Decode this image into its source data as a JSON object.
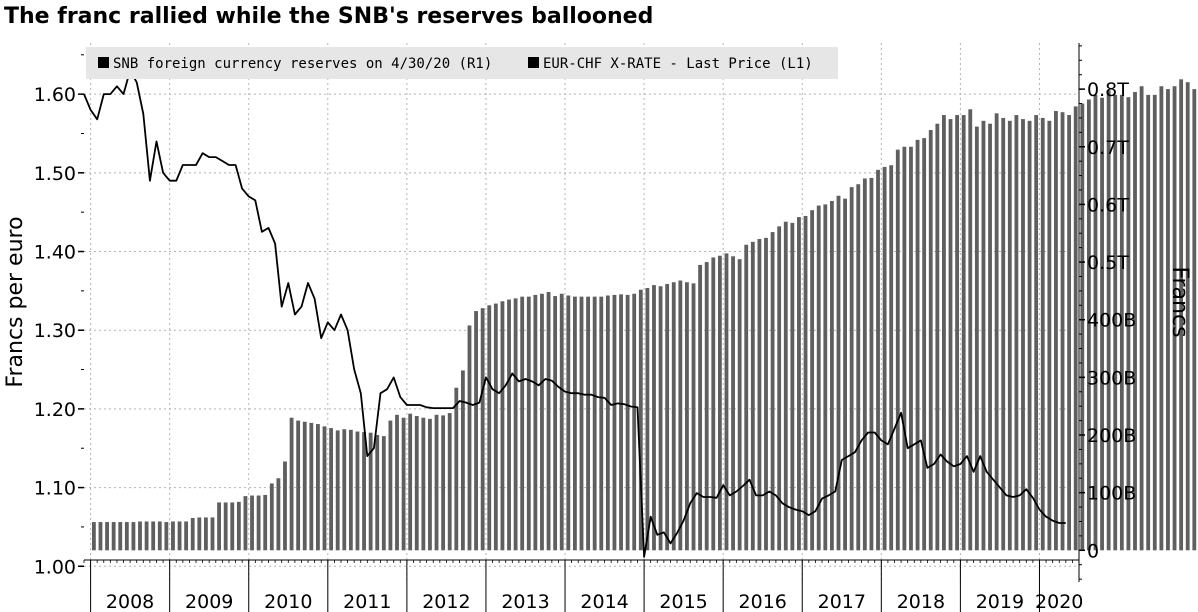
{
  "title": "The franc rallied while the SNB's reserves ballooned",
  "chart_data": {
    "type": "bar+line",
    "title": "The franc rallied while the SNB's reserves ballooned",
    "ylabel_left": "Francs per euro",
    "ylabel_right": "Francs",
    "ylim_left": [
      0.98,
      1.665
    ],
    "yticks_left": [
      "1.00",
      "1.10",
      "1.20",
      "1.30",
      "1.40",
      "1.50",
      "1.60"
    ],
    "ylim_right": [
      -55,
      880
    ],
    "yticks_right": [
      {
        "v": 0,
        "label": "0"
      },
      {
        "v": 100,
        "label": "100B"
      },
      {
        "v": 200,
        "label": "200B"
      },
      {
        "v": 300,
        "label": "300B"
      },
      {
        "v": 400,
        "label": "400B"
      },
      {
        "v": 500,
        "label": "0.5T"
      },
      {
        "v": 600,
        "label": "0.6T"
      },
      {
        "v": 700,
        "label": "0.7T"
      },
      {
        "v": 800,
        "label": "0.8T"
      }
    ],
    "x_start": "2007-12",
    "x_end": "2020-07",
    "xlabels": [
      "2008",
      "2009",
      "2010",
      "2011",
      "2012",
      "2013",
      "2014",
      "2015",
      "2016",
      "2017",
      "2018",
      "2019",
      "2020"
    ],
    "grid": true,
    "legend_position": "top-left",
    "series": [
      {
        "name": "SNB foreign currency reserves on 4/30/20 (R1)",
        "type": "bar",
        "axis": "right",
        "units": "billion francs",
        "color": "#5f5f5f",
        "start": "2008-01",
        "frequency": "monthly",
        "values": [
          49,
          49,
          49,
          49,
          49,
          49,
          49,
          50,
          50,
          50,
          50,
          49,
          50,
          50,
          50,
          56,
          57,
          57,
          57,
          83,
          83,
          83,
          84,
          94,
          95,
          95,
          96,
          116,
          125,
          154,
          230,
          225,
          223,
          221,
          219,
          215,
          212,
          208,
          210,
          209,
          206,
          205,
          204,
          200,
          198,
          225,
          235,
          230,
          237,
          233,
          230,
          228,
          235,
          234,
          238,
          282,
          312,
          390,
          415,
          420,
          425,
          428,
          432,
          435,
          437,
          440,
          440,
          443,
          445,
          448,
          441,
          445,
          442,
          440,
          440,
          440,
          440,
          440,
          442,
          443,
          444,
          443,
          445,
          452,
          455,
          460,
          458,
          462,
          465,
          468,
          465,
          463,
          495,
          500,
          508,
          511,
          515,
          510,
          505,
          530,
          535,
          540,
          542,
          552,
          562,
          570,
          568,
          578,
          580,
          590,
          598,
          600,
          606,
          615,
          610,
          630,
          635,
          645,
          646,
          660,
          665,
          668,
          695,
          700,
          700,
          712,
          715,
          729,
          740,
          755,
          748,
          755,
          755,
          765,
          735,
          745,
          740,
          758,
          750,
          745,
          755,
          748,
          745,
          755,
          750,
          745,
          762,
          760,
          755,
          770,
          775,
          782,
          790,
          785,
          798,
          790,
          790,
          786,
          795,
          805,
          790,
          790,
          805,
          800,
          805,
          817,
          812,
          800,
          808,
          815,
          805,
          805,
          826
        ]
      },
      {
        "name": "EUR-CHF X-RATE - Last Price (L1)",
        "type": "line",
        "axis": "left",
        "units": "francs per euro",
        "color": "#000000",
        "points": [
          [
            "2007-12",
            1.6
          ],
          [
            "2008-01",
            1.58
          ],
          [
            "2008-02",
            1.568
          ],
          [
            "2008-03",
            1.6
          ],
          [
            "2008-04",
            1.6
          ],
          [
            "2008-05",
            1.61
          ],
          [
            "2008-06",
            1.6
          ],
          [
            "2008-07",
            1.63
          ],
          [
            "2008-08",
            1.615
          ],
          [
            "2008-09",
            1.575
          ],
          [
            "2008-10",
            1.49
          ],
          [
            "2008-11",
            1.54
          ],
          [
            "2008-12",
            1.5
          ],
          [
            "2009-01",
            1.49
          ],
          [
            "2009-02",
            1.49
          ],
          [
            "2009-03",
            1.51
          ],
          [
            "2009-04",
            1.51
          ],
          [
            "2009-05",
            1.51
          ],
          [
            "2009-06",
            1.525
          ],
          [
            "2009-07",
            1.52
          ],
          [
            "2009-08",
            1.52
          ],
          [
            "2009-09",
            1.515
          ],
          [
            "2009-10",
            1.51
          ],
          [
            "2009-11",
            1.51
          ],
          [
            "2009-12",
            1.48
          ],
          [
            "2010-01",
            1.47
          ],
          [
            "2010-02",
            1.465
          ],
          [
            "2010-03",
            1.425
          ],
          [
            "2010-04",
            1.43
          ],
          [
            "2010-05",
            1.41
          ],
          [
            "2010-06",
            1.33
          ],
          [
            "2010-07",
            1.36
          ],
          [
            "2010-08",
            1.32
          ],
          [
            "2010-09",
            1.33
          ],
          [
            "2010-10",
            1.36
          ],
          [
            "2010-11",
            1.34
          ],
          [
            "2010-12",
            1.29
          ],
          [
            "2011-01",
            1.31
          ],
          [
            "2011-02",
            1.3
          ],
          [
            "2011-03",
            1.32
          ],
          [
            "2011-04",
            1.3
          ],
          [
            "2011-05",
            1.25
          ],
          [
            "2011-06",
            1.22
          ],
          [
            "2011-07",
            1.14
          ],
          [
            "2011-08",
            1.15
          ],
          [
            "2011-09",
            1.22
          ],
          [
            "2011-10",
            1.225
          ],
          [
            "2011-11",
            1.24
          ],
          [
            "2011-12",
            1.215
          ],
          [
            "2012-01",
            1.205
          ],
          [
            "2012-02",
            1.205
          ],
          [
            "2012-03",
            1.205
          ],
          [
            "2012-04",
            1.202
          ],
          [
            "2012-05",
            1.201
          ],
          [
            "2012-06",
            1.201
          ],
          [
            "2012-07",
            1.201
          ],
          [
            "2012-08",
            1.201
          ],
          [
            "2012-09",
            1.21
          ],
          [
            "2012-10",
            1.208
          ],
          [
            "2012-11",
            1.205
          ],
          [
            "2012-12",
            1.208
          ],
          [
            "2013-01",
            1.24
          ],
          [
            "2013-02",
            1.225
          ],
          [
            "2013-03",
            1.22
          ],
          [
            "2013-04",
            1.23
          ],
          [
            "2013-05",
            1.245
          ],
          [
            "2013-06",
            1.235
          ],
          [
            "2013-07",
            1.238
          ],
          [
            "2013-08",
            1.235
          ],
          [
            "2013-09",
            1.23
          ],
          [
            "2013-10",
            1.238
          ],
          [
            "2013-11",
            1.236
          ],
          [
            "2013-12",
            1.228
          ],
          [
            "2014-01",
            1.222
          ],
          [
            "2014-02",
            1.22
          ],
          [
            "2014-03",
            1.22
          ],
          [
            "2014-04",
            1.218
          ],
          [
            "2014-05",
            1.218
          ],
          [
            "2014-06",
            1.215
          ],
          [
            "2014-07",
            1.214
          ],
          [
            "2014-08",
            1.205
          ],
          [
            "2014-09",
            1.207
          ],
          [
            "2014-10",
            1.206
          ],
          [
            "2014-11",
            1.203
          ],
          [
            "2014-12",
            1.202
          ],
          [
            "2015-01",
            1.012
          ],
          [
            "2015-02",
            1.063
          ],
          [
            "2015-03",
            1.04
          ],
          [
            "2015-04",
            1.043
          ],
          [
            "2015-05",
            1.029
          ],
          [
            "2015-06",
            1.042
          ],
          [
            "2015-07",
            1.058
          ],
          [
            "2015-08",
            1.08
          ],
          [
            "2015-09",
            1.093
          ],
          [
            "2015-10",
            1.088
          ],
          [
            "2015-11",
            1.088
          ],
          [
            "2015-12",
            1.087
          ],
          [
            "2016-01",
            1.103
          ],
          [
            "2016-02",
            1.09
          ],
          [
            "2016-03",
            1.095
          ],
          [
            "2016-04",
            1.102
          ],
          [
            "2016-05",
            1.11
          ],
          [
            "2016-06",
            1.09
          ],
          [
            "2016-07",
            1.09
          ],
          [
            "2016-08",
            1.095
          ],
          [
            "2016-09",
            1.09
          ],
          [
            "2016-10",
            1.08
          ],
          [
            "2016-11",
            1.075
          ],
          [
            "2016-12",
            1.072
          ],
          [
            "2017-01",
            1.07
          ],
          [
            "2017-02",
            1.065
          ],
          [
            "2017-03",
            1.07
          ],
          [
            "2017-04",
            1.086
          ],
          [
            "2017-05",
            1.09
          ],
          [
            "2017-06",
            1.095
          ],
          [
            "2017-07",
            1.135
          ],
          [
            "2017-08",
            1.14
          ],
          [
            "2017-09",
            1.145
          ],
          [
            "2017-10",
            1.16
          ],
          [
            "2017-11",
            1.17
          ],
          [
            "2017-12",
            1.17
          ],
          [
            "2018-01",
            1.16
          ],
          [
            "2018-02",
            1.155
          ],
          [
            "2018-03",
            1.175
          ],
          [
            "2018-04",
            1.195
          ],
          [
            "2018-05",
            1.15
          ],
          [
            "2018-06",
            1.155
          ],
          [
            "2018-07",
            1.16
          ],
          [
            "2018-08",
            1.125
          ],
          [
            "2018-09",
            1.13
          ],
          [
            "2018-10",
            1.142
          ],
          [
            "2018-11",
            1.133
          ],
          [
            "2018-12",
            1.127
          ],
          [
            "2019-01",
            1.13
          ],
          [
            "2019-02",
            1.14
          ],
          [
            "2019-03",
            1.12
          ],
          [
            "2019-04",
            1.14
          ],
          [
            "2019-05",
            1.12
          ],
          [
            "2019-06",
            1.11
          ],
          [
            "2019-07",
            1.1
          ],
          [
            "2019-08",
            1.09
          ],
          [
            "2019-09",
            1.088
          ],
          [
            "2019-10",
            1.09
          ],
          [
            "2019-11",
            1.098
          ],
          [
            "2019-12",
            1.087
          ],
          [
            "2020-01",
            1.072
          ],
          [
            "2020-02",
            1.063
          ],
          [
            "2020-03",
            1.058
          ],
          [
            "2020-04",
            1.055
          ],
          [
            "2020-05",
            1.055
          ]
        ]
      }
    ]
  }
}
